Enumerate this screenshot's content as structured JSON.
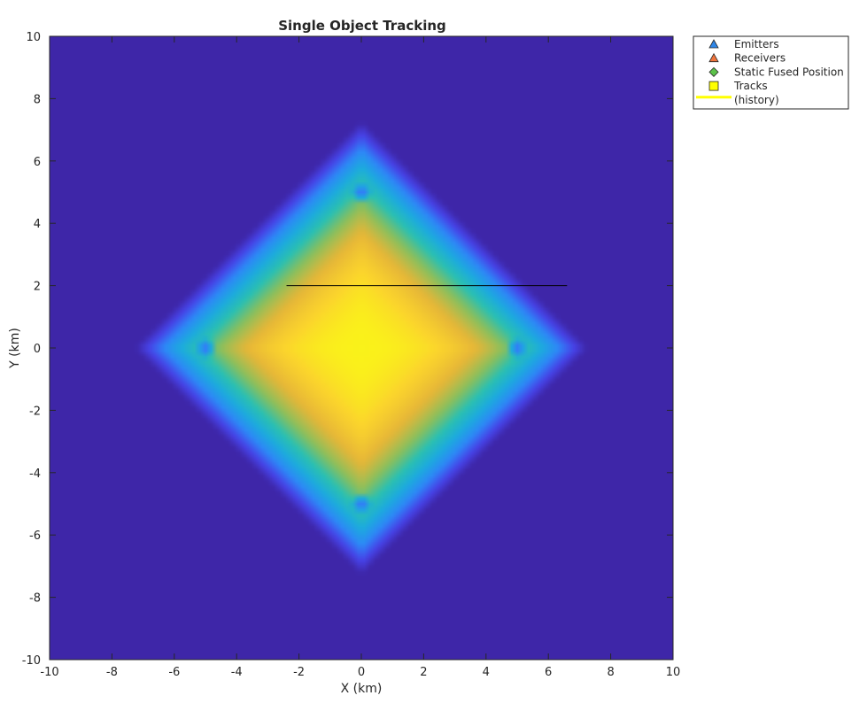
{
  "chart_data": {
    "type": "heatmap",
    "title": "Single Object Tracking",
    "xlabel": "X (km)",
    "ylabel": "Y (km)",
    "xlim": [
      -10,
      10
    ],
    "ylim": [
      -10,
      10
    ],
    "xticks": [
      -10,
      -8,
      -6,
      -4,
      -2,
      0,
      2,
      4,
      6,
      8,
      10
    ],
    "yticks": [
      -10,
      -8,
      -6,
      -4,
      -2,
      0,
      2,
      4,
      6,
      8,
      10
    ],
    "grid": false,
    "colormap": [
      "#3e26a8",
      "#4743e9",
      "#2e87f7",
      "#1caadf",
      "#2bc0b1",
      "#8dbf5b",
      "#e6b638",
      "#fbd42d",
      "#f9fb14"
    ],
    "heatmap_peaks": [
      {
        "x": 0,
        "y": 5
      },
      {
        "x": 0,
        "y": -5
      },
      {
        "x": 5,
        "y": 0
      },
      {
        "x": -5,
        "y": 0
      }
    ],
    "track_history": {
      "name": "(history)",
      "x": [
        -2.4,
        6.6
      ],
      "y": [
        2.0,
        2.0
      ],
      "color": "#000000"
    },
    "legend": {
      "location": "top-right, outside axes",
      "entries": [
        {
          "label": "Emitters",
          "marker": "triangle",
          "color": "#2e86e8"
        },
        {
          "label": "Receivers",
          "marker": "triangle",
          "color": "#f0743c"
        },
        {
          "label": "Static Fused Position",
          "marker": "diamond",
          "color": "#5cc24a"
        },
        {
          "label": "Tracks",
          "marker": "square",
          "color": "#ffff00"
        },
        {
          "label": "(history)",
          "marker": "line",
          "color": "#ffff00"
        }
      ]
    }
  }
}
